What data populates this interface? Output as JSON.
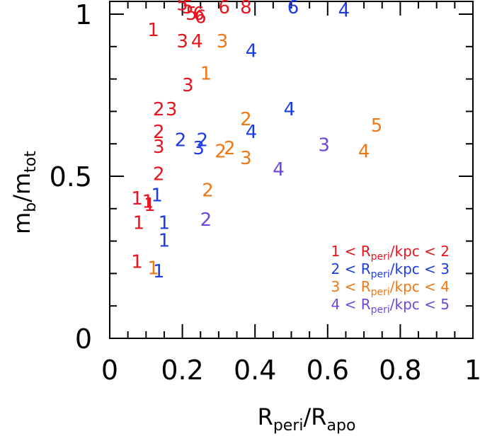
{
  "chart_data": {
    "type": "scatter",
    "xlim": [
      0,
      1
    ],
    "ylim": [
      0,
      1.05
    ],
    "xticks": [
      "0",
      "0.2",
      "0.4",
      "0.6",
      "0.8",
      "1"
    ],
    "yticks": [
      "0",
      "0.5",
      "1"
    ],
    "xlabel": {
      "main": "R",
      "sub1": "peri",
      "slash": "/R",
      "sub2": "apo"
    },
    "ylabel": {
      "main": "m",
      "sub1": "b",
      "slash": "/m",
      "sub2": "tot"
    },
    "grid": false,
    "legend_position": "bottom-right",
    "series": [
      {
        "legend": {
          "pre": "1 < R",
          "sub": "peri",
          "post": "/kpc < 2"
        },
        "color": "#e8141e",
        "points": [
          {
            "x": 0.2,
            "y": 1.03,
            "label": "5"
          },
          {
            "x": 0.215,
            "y": 1.02,
            "label": "5"
          },
          {
            "x": 0.225,
            "y": 1.0,
            "label": "5"
          },
          {
            "x": 0.245,
            "y": 1.0,
            "label": "6"
          },
          {
            "x": 0.25,
            "y": 0.99,
            "label": "6"
          },
          {
            "x": 0.315,
            "y": 1.02,
            "label": "6"
          },
          {
            "x": 0.375,
            "y": 1.02,
            "label": "8"
          },
          {
            "x": 0.12,
            "y": 0.95,
            "label": "1"
          },
          {
            "x": 0.2,
            "y": 0.915,
            "label": "3"
          },
          {
            "x": 0.24,
            "y": 0.915,
            "label": "4"
          },
          {
            "x": 0.215,
            "y": 0.78,
            "label": "3"
          },
          {
            "x": 0.135,
            "y": 0.705,
            "label": "2"
          },
          {
            "x": 0.17,
            "y": 0.705,
            "label": "3"
          },
          {
            "x": 0.135,
            "y": 0.635,
            "label": "2"
          },
          {
            "x": 0.135,
            "y": 0.59,
            "label": "3"
          },
          {
            "x": 0.135,
            "y": 0.505,
            "label": "2"
          },
          {
            "x": 0.075,
            "y": 0.43,
            "label": "1"
          },
          {
            "x": 0.105,
            "y": 0.42,
            "label": "1"
          },
          {
            "x": 0.11,
            "y": 0.41,
            "label": "1"
          },
          {
            "x": 0.08,
            "y": 0.355,
            "label": "1"
          },
          {
            "x": 0.075,
            "y": 0.235,
            "label": "1"
          }
        ]
      },
      {
        "legend": {
          "pre": "2 < R",
          "sub": "peri",
          "post": "/kpc < 3"
        },
        "color": "#1e3ce6",
        "points": [
          {
            "x": 0.505,
            "y": 1.02,
            "label": "6"
          },
          {
            "x": 0.645,
            "y": 1.01,
            "label": "4"
          },
          {
            "x": 0.39,
            "y": 0.885,
            "label": "4"
          },
          {
            "x": 0.495,
            "y": 0.705,
            "label": "4"
          },
          {
            "x": 0.39,
            "y": 0.635,
            "label": "4"
          },
          {
            "x": 0.195,
            "y": 0.61,
            "label": "2"
          },
          {
            "x": 0.255,
            "y": 0.61,
            "label": "2"
          },
          {
            "x": 0.245,
            "y": 0.585,
            "label": "3"
          },
          {
            "x": 0.13,
            "y": 0.44,
            "label": "1"
          },
          {
            "x": 0.15,
            "y": 0.355,
            "label": "1"
          },
          {
            "x": 0.15,
            "y": 0.3,
            "label": "1"
          },
          {
            "x": 0.135,
            "y": 0.205,
            "label": "1"
          }
        ]
      },
      {
        "legend": {
          "pre": "3 < R",
          "sub": "peri",
          "post": "/kpc < 4"
        },
        "color": "#f07814",
        "points": [
          {
            "x": 0.31,
            "y": 0.915,
            "label": "3"
          },
          {
            "x": 0.265,
            "y": 0.815,
            "label": "1"
          },
          {
            "x": 0.375,
            "y": 0.675,
            "label": "2"
          },
          {
            "x": 0.735,
            "y": 0.655,
            "label": "5"
          },
          {
            "x": 0.33,
            "y": 0.585,
            "label": "2"
          },
          {
            "x": 0.305,
            "y": 0.575,
            "label": "2"
          },
          {
            "x": 0.7,
            "y": 0.575,
            "label": "4"
          },
          {
            "x": 0.375,
            "y": 0.555,
            "label": "3"
          },
          {
            "x": 0.27,
            "y": 0.455,
            "label": "2"
          },
          {
            "x": 0.12,
            "y": 0.215,
            "label": "1"
          }
        ]
      },
      {
        "legend": {
          "pre": "4 < R",
          "sub": "peri",
          "post": "/kpc < 5"
        },
        "color": "#6e46dc",
        "points": [
          {
            "x": 0.59,
            "y": 0.595,
            "label": "3"
          },
          {
            "x": 0.465,
            "y": 0.52,
            "label": "4"
          },
          {
            "x": 0.265,
            "y": 0.365,
            "label": "2"
          }
        ]
      }
    ]
  }
}
